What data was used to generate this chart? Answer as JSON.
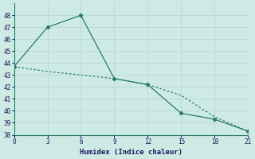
{
  "line1_x": [
    0,
    3,
    6,
    9,
    12,
    15,
    18,
    21
  ],
  "line1_y": [
    43.7,
    47.0,
    48.0,
    42.7,
    42.2,
    39.8,
    39.3,
    38.3
  ],
  "line2_x": [
    0,
    3,
    6,
    9,
    12,
    15,
    18,
    21
  ],
  "line2_y": [
    43.7,
    43.3,
    43.0,
    42.7,
    42.2,
    41.3,
    39.5,
    38.3
  ],
  "line_color": "#2a7a6e",
  "bg_color": "#ceeae5",
  "grid_color": "#b8d8d4",
  "xlabel": "Humidex (Indice chaleur)",
  "xlim": [
    0,
    21
  ],
  "ylim": [
    38,
    49
  ],
  "xticks": [
    0,
    3,
    6,
    9,
    12,
    15,
    18,
    21
  ],
  "yticks": [
    38,
    39,
    40,
    41,
    42,
    43,
    44,
    45,
    46,
    47,
    48
  ]
}
